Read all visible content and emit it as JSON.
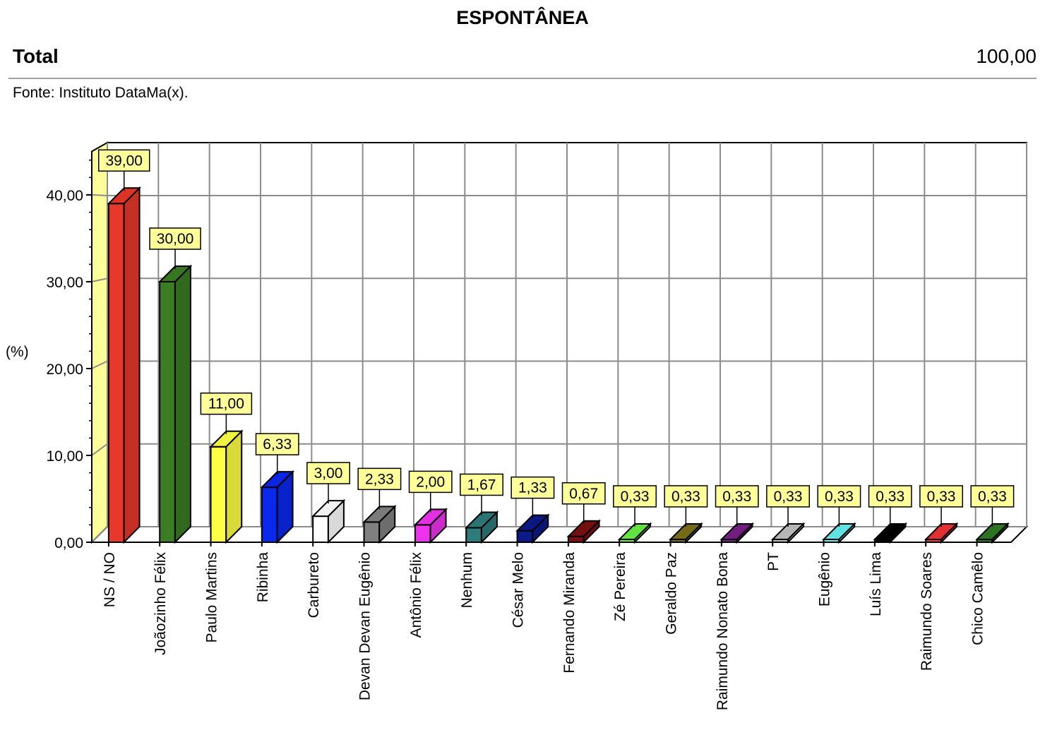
{
  "header": {
    "title": "ESPONTÂNEA",
    "total_label": "Total",
    "total_value": "100,00",
    "source": "Fonte: Instituto DataMa(x)."
  },
  "chart_data": {
    "type": "bar",
    "title": "ESPONTÂNEA",
    "ylabel": "(%)",
    "xlabel": "",
    "ylim": [
      0,
      45
    ],
    "yticks": [
      0,
      10,
      20,
      30,
      40
    ],
    "ytick_labels": [
      "0,00",
      "10,00",
      "20,00",
      "30,00",
      "40,00"
    ],
    "grid": true,
    "three_d": true,
    "categories": [
      "NS / NO",
      "Joãozinho Félix",
      "Paulo Martins",
      "Ribinha",
      "Carbureto",
      "Devan Devan Eugênio",
      "Antônio Félix",
      "Nenhum",
      "César Melo",
      "Fernando Miranda",
      "Zé Pereira",
      "Geraldo Paz",
      "Raimundo Nonato Bona",
      "PT",
      "Eugênio",
      "Luís Lima",
      "Raimundo Soares",
      "Chico Camêlo"
    ],
    "values": [
      39.0,
      30.0,
      11.0,
      6.33,
      3.0,
      2.33,
      2.0,
      1.67,
      1.33,
      0.67,
      0.33,
      0.33,
      0.33,
      0.33,
      0.33,
      0.33,
      0.33,
      0.33
    ],
    "value_labels": [
      "39,00",
      "30,00",
      "11,00",
      "6,33",
      "3,00",
      "2,33",
      "2,00",
      "1,67",
      "1,33",
      "0,67",
      "0,33",
      "0,33",
      "0,33",
      "0,33",
      "0,33",
      "0,33",
      "0,33",
      "0,33"
    ],
    "colors": [
      "#e8382a",
      "#3a7d22",
      "#ffff44",
      "#0a28ee",
      "#ffffff",
      "#808080",
      "#ee33ee",
      "#2e7b7b",
      "#0a1a88",
      "#7a1010",
      "#66ee44",
      "#7a7018",
      "#7a1e88",
      "#c0c0c0",
      "#66eeee",
      "#000000",
      "#ee3333",
      "#2e7a22"
    ],
    "label_box_color": "#ffff99",
    "wall_color": "#ffff99"
  }
}
